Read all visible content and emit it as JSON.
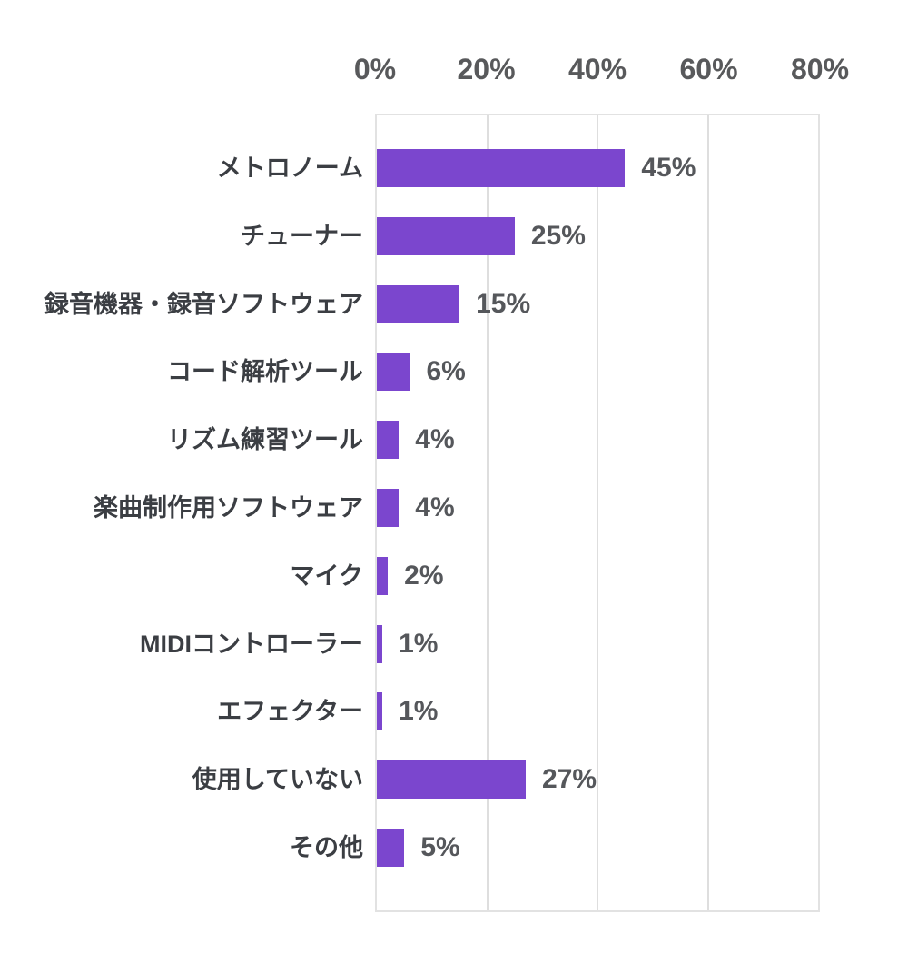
{
  "chart_data": {
    "type": "bar",
    "orientation": "horizontal",
    "categories": [
      "メトロノーム",
      "チューナー",
      "録音機器・録音ソフトウェア",
      "コード解析ツール",
      "リズム練習ツール",
      "楽曲制作用ソフトウェア",
      "マイク",
      "MIDIコントローラー",
      "エフェクター",
      "使用していない",
      "その他"
    ],
    "values": [
      45,
      25,
      15,
      6,
      4,
      4,
      2,
      1,
      1,
      27,
      5
    ],
    "value_labels": [
      "45%",
      "25%",
      "15%",
      "6%",
      "4%",
      "4%",
      "2%",
      "1%",
      "1%",
      "27%",
      "5%"
    ],
    "x_ticks": [
      "0%",
      "20%",
      "40%",
      "60%",
      "80%"
    ],
    "x_tick_values": [
      0,
      20,
      40,
      60,
      80
    ],
    "xlim": [
      0,
      80
    ],
    "grid": true,
    "legend": false,
    "colors": {
      "bar": "#7b46ce",
      "gridline": "#dedede",
      "plot_border": "#e2e2e2",
      "axis_tick_label": "#58595b",
      "category_label": "#3b3e43",
      "value_label": "#55575b",
      "background": "#ffffff"
    }
  }
}
